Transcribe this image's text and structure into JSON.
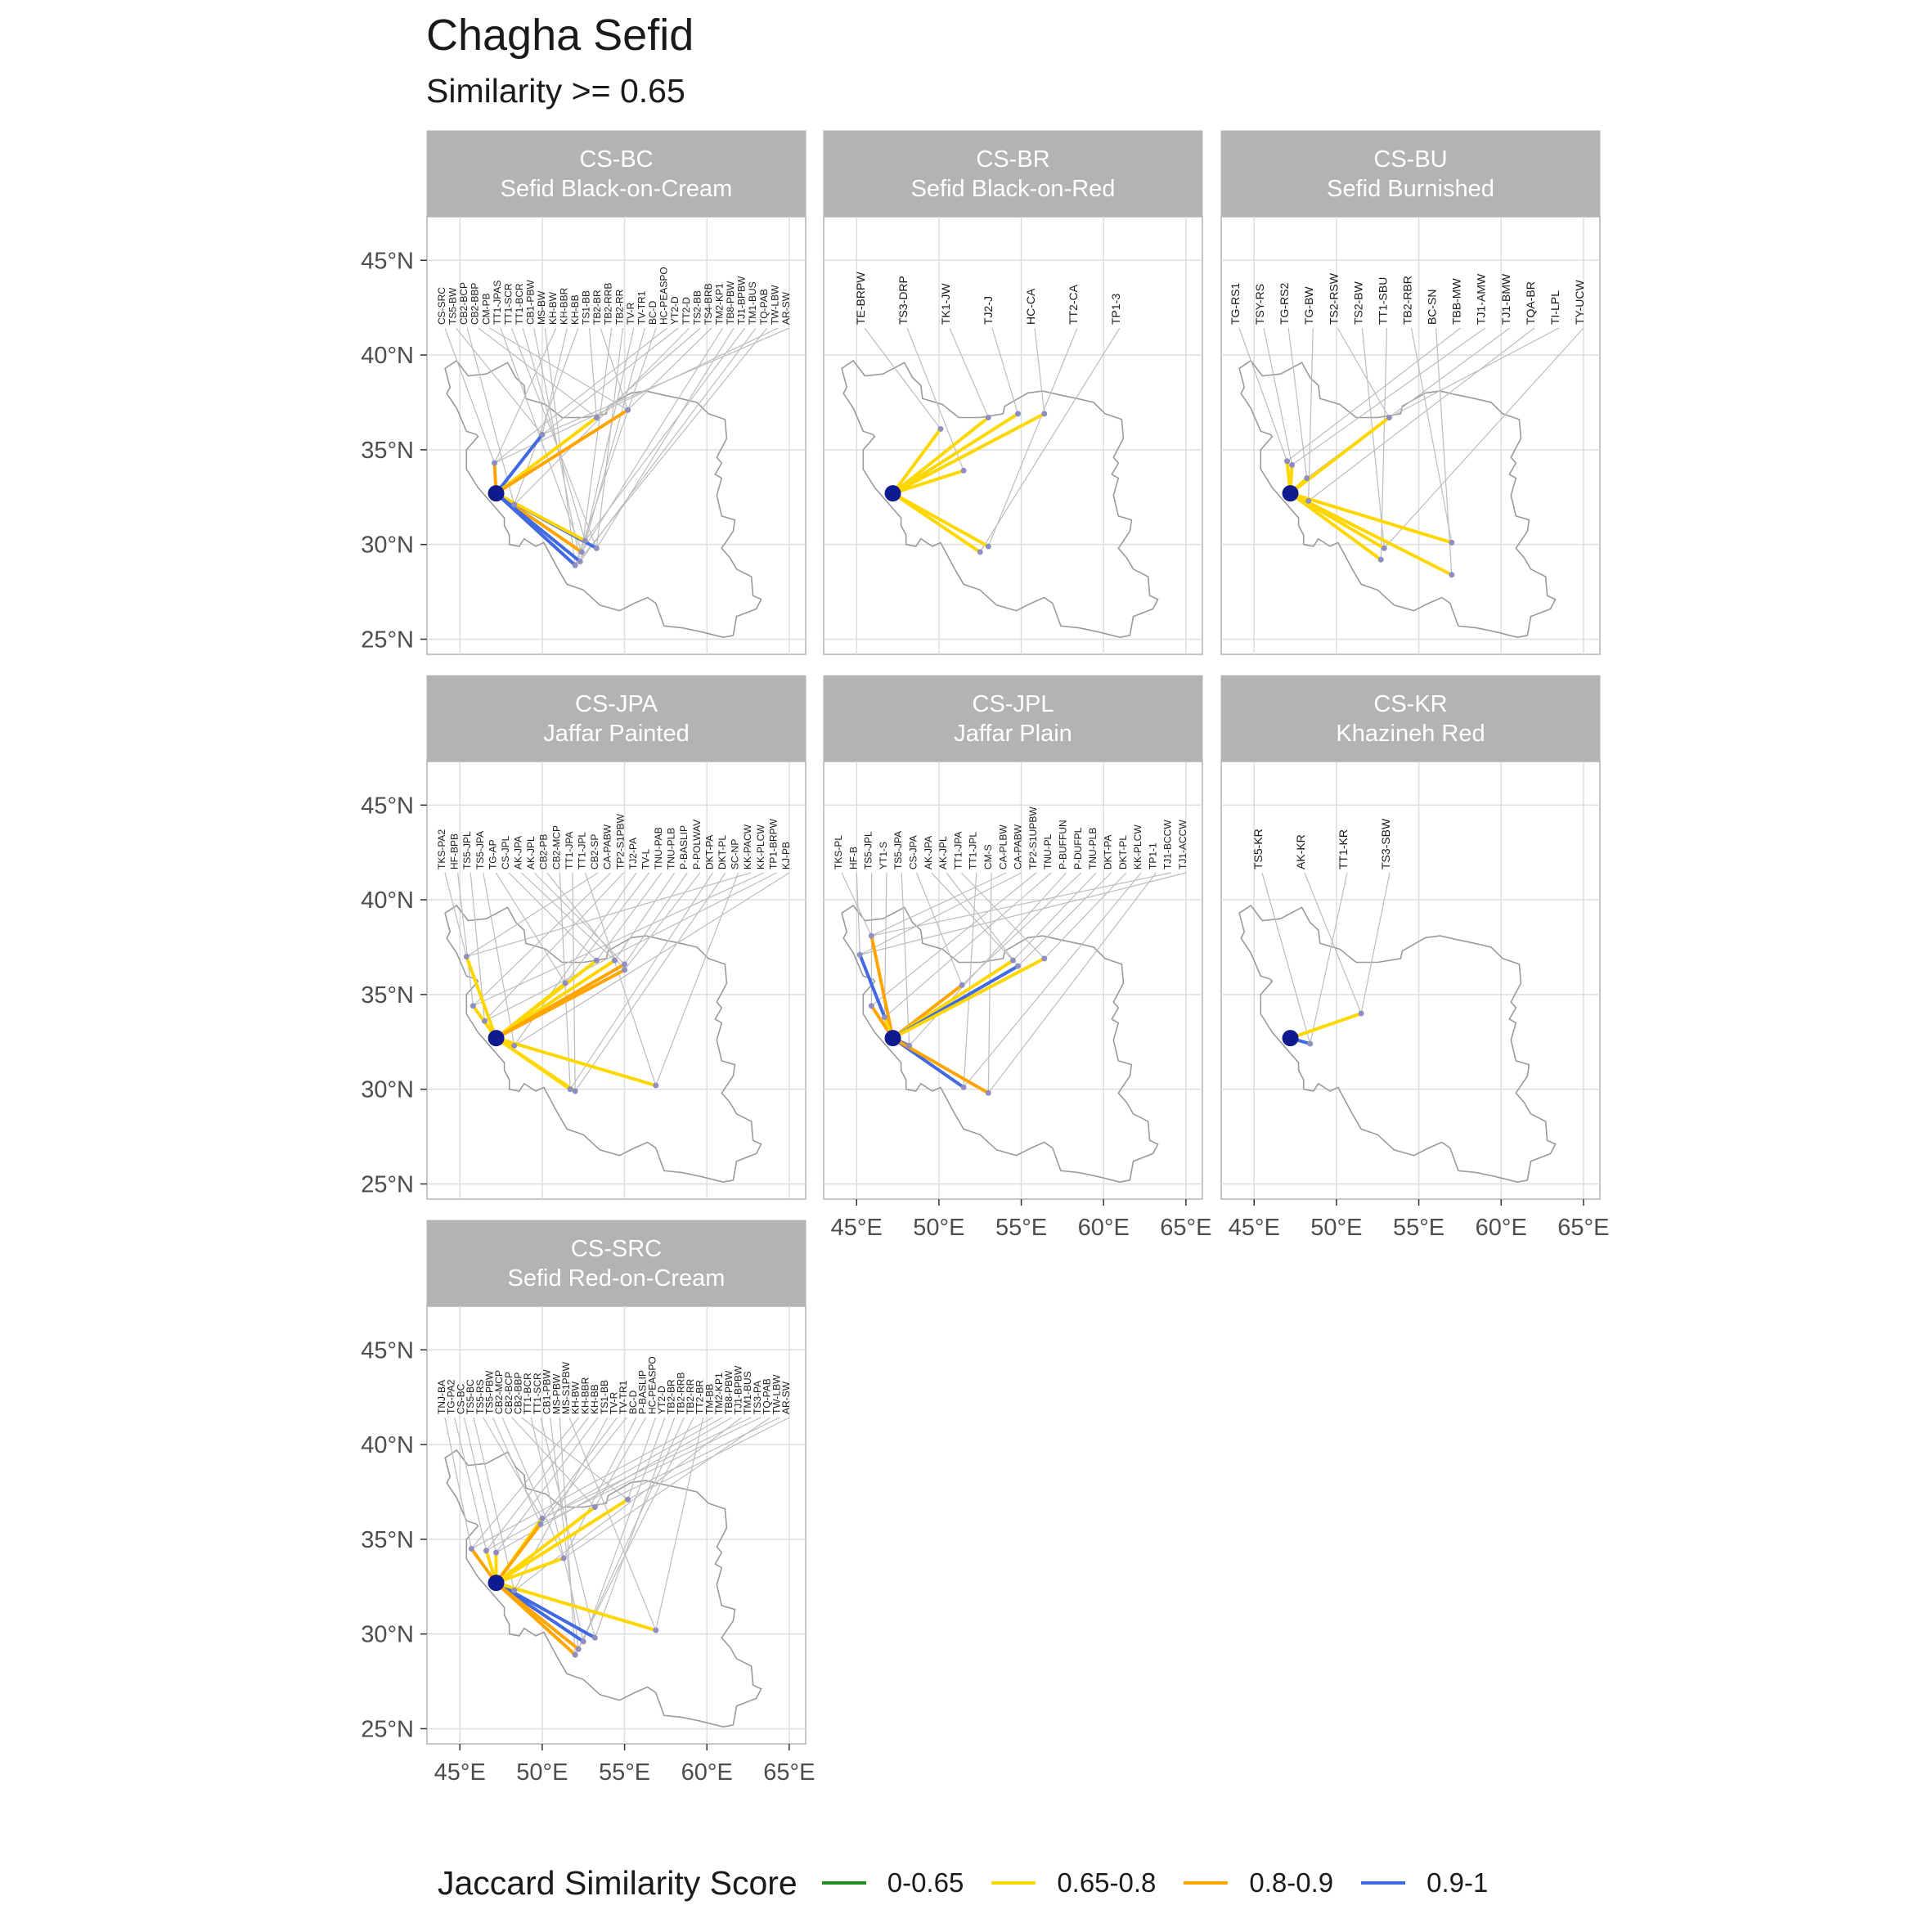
{
  "title": "Chagha Sefid",
  "subtitle": "Similarity >= 0.65",
  "legend": {
    "title": "Jaccard Similarity Score",
    "items": [
      {
        "label": "0-0.65",
        "color": "#228B22"
      },
      {
        "label": "0.65-0.8",
        "color": "#FFD700"
      },
      {
        "label": "0.8-0.9",
        "color": "#FFA500"
      },
      {
        "label": "0.9-1",
        "color": "#4169E1"
      }
    ]
  },
  "axes": {
    "lat_ticks": [
      "45°N",
      "40°N",
      "35°N",
      "30°N",
      "25°N"
    ],
    "lon_ticks": [
      "45°E",
      "50°E",
      "55°E",
      "60°E",
      "65°E"
    ],
    "lat_values": [
      45,
      40,
      35,
      30,
      25
    ],
    "lon_values": [
      45,
      50,
      55,
      60,
      65
    ],
    "xlim": [
      43,
      66
    ],
    "ylim": [
      24.2,
      47.3
    ]
  },
  "origin": {
    "lon": 47.2,
    "lat": 32.7
  },
  "chart_data": {
    "type": "map",
    "panels": [
      {
        "code": "CS-BC",
        "name": "Sefid Black-on-Cream",
        "labels": [
          "CS-SRC",
          "TS5-BW",
          "CB2-BCP",
          "CB2-BBP",
          "CM-PB",
          "TT1-JPAS",
          "TT1-SCR",
          "TT1-BCR",
          "CB1-PBW",
          "MS-BW",
          "KH-BW",
          "KH-BBR",
          "KH-BB",
          "TS1-BB",
          "TB2-BR",
          "TB2-RRB",
          "TB2-RR",
          "TV-R",
          "TV-TR1",
          "BC-D",
          "HC-PEASPO",
          "YT2-D",
          "TT2-D",
          "TS2-BB",
          "TS4-BRB",
          "TM2-KP1",
          "TB8-PBW",
          "TJ1-BPBW",
          "TM1-BUS",
          "TQ-PAB",
          "TW-LBW",
          "AR-SW"
        ],
        "links": [
          {
            "lon": 47.1,
            "lat": 34.3,
            "score": "0.8-0.9"
          },
          {
            "lon": 50.0,
            "lat": 35.8,
            "score": "0.9-1"
          },
          {
            "lon": 48.3,
            "lat": 32.1,
            "score": "0.9-1"
          },
          {
            "lon": 53.3,
            "lat": 36.7,
            "score": "0.65-0.8"
          },
          {
            "lon": 55.2,
            "lat": 37.1,
            "score": "0.8-0.9"
          },
          {
            "lon": 52.4,
            "lat": 29.6,
            "score": "0.8-0.9"
          },
          {
            "lon": 53.3,
            "lat": 29.8,
            "score": "0.9-1"
          },
          {
            "lon": 52.6,
            "lat": 30.2,
            "score": "0.65-0.8"
          },
          {
            "lon": 52.3,
            "lat": 29.1,
            "score": "0.9-1"
          },
          {
            "lon": 52.0,
            "lat": 28.9,
            "score": "0.9-1"
          }
        ]
      },
      {
        "code": "CS-BR",
        "name": "Sefid Black-on-Red",
        "labels": [
          "TE-BRPW",
          "TS3-DRP",
          "TK1-JW",
          "TJ2-J",
          "HC-CA",
          "TT2-CA",
          "TP1-3"
        ],
        "links": [
          {
            "lon": 50.1,
            "lat": 36.1,
            "score": "0.65-0.8"
          },
          {
            "lon": 51.5,
            "lat": 33.9,
            "score": "0.65-0.8"
          },
          {
            "lon": 53.0,
            "lat": 36.7,
            "score": "0.65-0.8"
          },
          {
            "lon": 54.8,
            "lat": 36.9,
            "score": "0.65-0.8"
          },
          {
            "lon": 56.4,
            "lat": 36.9,
            "score": "0.65-0.8"
          },
          {
            "lon": 53.0,
            "lat": 29.9,
            "score": "0.65-0.8"
          },
          {
            "lon": 52.5,
            "lat": 29.6,
            "score": "0.65-0.8"
          }
        ]
      },
      {
        "code": "CS-BU",
        "name": "Sefid Burnished",
        "labels": [
          "TG-RS1",
          "TSY-RS",
          "TG-RS2",
          "TG-BW",
          "TS2-RSW",
          "TS2-BW",
          "TT1-SBU",
          "TB2-RBR",
          "BC-SN",
          "TBB-MW",
          "TJ1-AMW",
          "TJ1-BMW",
          "TQA-BR",
          "TI-LPL",
          "TY-UCW"
        ],
        "links": [
          {
            "lon": 47.0,
            "lat": 34.4,
            "score": "0.65-0.8"
          },
          {
            "lon": 47.3,
            "lat": 34.2,
            "score": "0.65-0.8"
          },
          {
            "lon": 48.2,
            "lat": 33.5,
            "score": "0.65-0.8"
          },
          {
            "lon": 48.3,
            "lat": 32.3,
            "score": "0.9-1"
          },
          {
            "lon": 53.2,
            "lat": 36.7,
            "score": "0.65-0.8"
          },
          {
            "lon": 52.9,
            "lat": 29.8,
            "score": "0.65-0.8"
          },
          {
            "lon": 52.7,
            "lat": 29.2,
            "score": "0.65-0.8"
          },
          {
            "lon": 57.0,
            "lat": 30.1,
            "score": "0.65-0.8"
          },
          {
            "lon": 57.0,
            "lat": 28.4,
            "score": "0.65-0.8"
          }
        ]
      },
      {
        "code": "CS-JPA",
        "name": "Jaffar Painted",
        "labels": [
          "TKS-PA2",
          "HF-BPB",
          "TS5-JPL",
          "TS5-JPA",
          "TG-AP",
          "CS-JPL",
          "AK-JPA",
          "AK-JPL",
          "CB2-PB",
          "CB2-MCP",
          "TT1-JPA",
          "TT1-JPL",
          "CB2-SP",
          "CA-PABW",
          "TP2-S1PBW",
          "TJ2-PA",
          "TV-L",
          "TNU-PAB",
          "TNU-PLB",
          "P-BASLIP",
          "P-POLWAV",
          "DKT-PA",
          "DKT-PL",
          "SC-NP",
          "KK-PACW",
          "KK-PLCW",
          "TP1-BRPW",
          "KJ-PB"
        ],
        "links": [
          {
            "lon": 45.4,
            "lat": 37.0,
            "score": "0.65-0.8"
          },
          {
            "lon": 45.8,
            "lat": 34.4,
            "score": "0.65-0.8"
          },
          {
            "lon": 46.5,
            "lat": 33.6,
            "score": "0.65-0.8"
          },
          {
            "lon": 48.3,
            "lat": 32.3,
            "score": "0.65-0.8"
          },
          {
            "lon": 51.4,
            "lat": 35.6,
            "score": "0.65-0.8"
          },
          {
            "lon": 53.3,
            "lat": 36.8,
            "score": "0.65-0.8"
          },
          {
            "lon": 54.4,
            "lat": 36.8,
            "score": "0.65-0.8"
          },
          {
            "lon": 55.0,
            "lat": 36.6,
            "score": "0.8-0.9"
          },
          {
            "lon": 55.0,
            "lat": 36.3,
            "score": "0.8-0.9"
          },
          {
            "lon": 51.7,
            "lat": 30.0,
            "score": "0.65-0.8"
          },
          {
            "lon": 52.0,
            "lat": 29.9,
            "score": "0.65-0.8"
          },
          {
            "lon": 56.9,
            "lat": 30.2,
            "score": "0.65-0.8"
          }
        ]
      },
      {
        "code": "CS-JPL",
        "name": "Jaffar Plain",
        "labels": [
          "TKS-PL",
          "HF-B",
          "TS5-JPL",
          "YT1-S",
          "TS5-JPA",
          "CS-JPA",
          "AK-JPA",
          "AK-JPL",
          "TT1-JPA",
          "TT1-JPL",
          "CM-S",
          "CA-PLBW",
          "CA-PABW",
          "TP2-S1UPBW",
          "TNU-PL",
          "P-BUFFUN",
          "P-DUFPL",
          "TNU-PLB",
          "DKT-PA",
          "DKT-PL",
          "KK-PLCW",
          "TP1-1",
          "TJ1-BCCW",
          "TJ1-ACCW"
        ],
        "links": [
          {
            "lon": 45.9,
            "lat": 38.1,
            "score": "0.8-0.9"
          },
          {
            "lon": 45.2,
            "lat": 37.1,
            "score": "0.9-1"
          },
          {
            "lon": 45.9,
            "lat": 34.4,
            "score": "0.8-0.9"
          },
          {
            "lon": 46.7,
            "lat": 33.8,
            "score": "0.65-0.8"
          },
          {
            "lon": 48.2,
            "lat": 32.3,
            "score": "0.9-1"
          },
          {
            "lon": 51.4,
            "lat": 35.5,
            "score": "0.8-0.9"
          },
          {
            "lon": 54.5,
            "lat": 36.8,
            "score": "0.65-0.8"
          },
          {
            "lon": 54.8,
            "lat": 36.5,
            "score": "0.9-1"
          },
          {
            "lon": 56.4,
            "lat": 36.9,
            "score": "0.65-0.8"
          },
          {
            "lon": 51.5,
            "lat": 30.1,
            "score": "0.9-1"
          },
          {
            "lon": 53.0,
            "lat": 29.8,
            "score": "0.8-0.9"
          }
        ]
      },
      {
        "code": "CS-KR",
        "name": "Khazineh Red",
        "labels": [
          "TS5-KR",
          "AK-KR",
          "TT1-KR",
          "TS3-SBW"
        ],
        "links": [
          {
            "lon": 48.4,
            "lat": 32.4,
            "score": "0.9-1"
          },
          {
            "lon": 51.5,
            "lat": 34.0,
            "score": "0.65-0.8"
          }
        ]
      },
      {
        "code": "CS-SRC",
        "name": "Sefid Red-on-Cream",
        "labels": [
          "TNJ-BA",
          "TG-PA2",
          "CS-BC",
          "TS5-BC",
          "TS5-RS",
          "TS5-PBW",
          "CB2-MCP",
          "CB2-BCP",
          "CB2-BBP",
          "TT1-BCR",
          "TT1-SCR",
          "CB1-PBW",
          "MS-PBW",
          "MS-S1PBW",
          "KH-BW",
          "KH-BBR",
          "KH-BB",
          "TS1-BB",
          "TV-R",
          "TV-TR1",
          "BC-D",
          "P-BASLIP",
          "HC-PEASPO",
          "YT2-D",
          "TB2-BR",
          "TB2-RRB",
          "TB2-RR",
          "TT2-BR",
          "TM-BB",
          "TM2-KP1",
          "TB8-PBW",
          "TJ1-BPBW",
          "TM1-BUS",
          "TS3-PA",
          "TQ-PAB",
          "TW-LBW",
          "AR-SW"
        ],
        "links": [
          {
            "lon": 45.7,
            "lat": 34.5,
            "score": "0.8-0.9"
          },
          {
            "lon": 46.6,
            "lat": 34.4,
            "score": "0.65-0.8"
          },
          {
            "lon": 47.2,
            "lat": 34.3,
            "score": "0.65-0.8"
          },
          {
            "lon": 48.3,
            "lat": 32.3,
            "score": "0.9-1"
          },
          {
            "lon": 50.0,
            "lat": 36.1,
            "score": "0.65-0.8"
          },
          {
            "lon": 49.9,
            "lat": 35.8,
            "score": "0.8-0.9"
          },
          {
            "lon": 51.3,
            "lat": 34.0,
            "score": "0.65-0.8"
          },
          {
            "lon": 53.2,
            "lat": 36.7,
            "score": "0.65-0.8"
          },
          {
            "lon": 55.2,
            "lat": 37.1,
            "score": "0.65-0.8"
          },
          {
            "lon": 52.5,
            "lat": 29.6,
            "score": "0.9-1"
          },
          {
            "lon": 53.2,
            "lat": 29.8,
            "score": "0.9-1"
          },
          {
            "lon": 52.2,
            "lat": 29.2,
            "score": "0.8-0.9"
          },
          {
            "lon": 52.0,
            "lat": 28.9,
            "score": "0.8-0.9"
          },
          {
            "lon": 56.9,
            "lat": 30.2,
            "score": "0.65-0.8"
          }
        ]
      }
    ]
  }
}
